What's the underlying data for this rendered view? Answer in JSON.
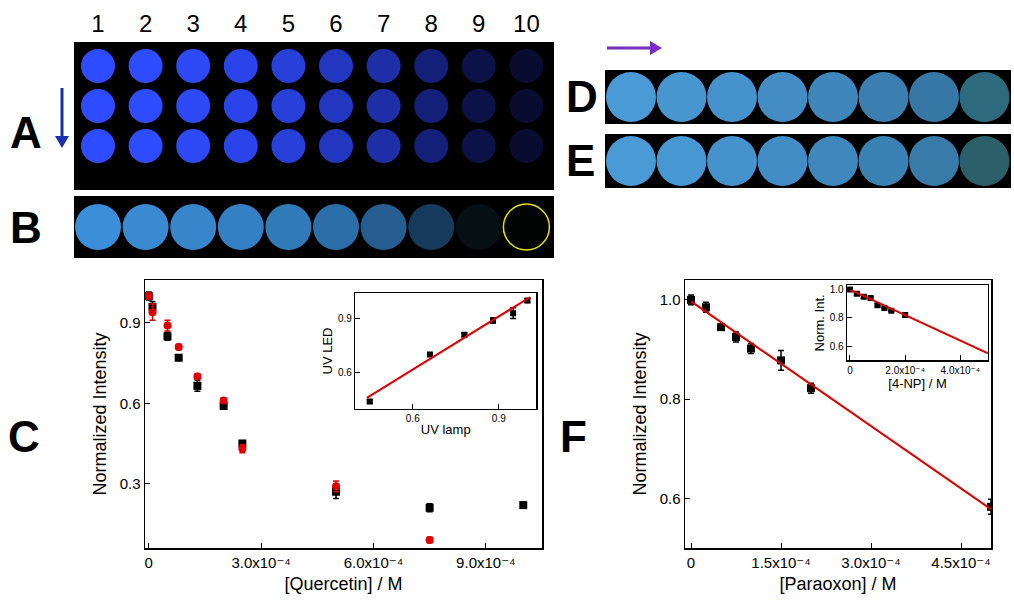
{
  "panels": [
    {
      "letter": "A",
      "columns": [
        "1",
        "2",
        "3",
        "4",
        "5",
        "6",
        "7",
        "8",
        "9",
        "10"
      ],
      "rows": 3,
      "arrow": "down",
      "arrow_color": "#1a2fb0",
      "colors": [
        "#2f4bff",
        "#2f4bff",
        "#2d48f5",
        "#2a44ea",
        "#2740d8",
        "#2336c0",
        "#1e2ea6",
        "#141f78",
        "#0b1248",
        "#080c30"
      ]
    },
    {
      "letter": "B",
      "outlined": 10,
      "outline_color": "#e8e000",
      "colors": [
        "#3b8fd8",
        "#3a8ad2",
        "#3885cc",
        "#3580c4",
        "#317ab8",
        "#2c6ea8",
        "#255d90",
        "#163a5c",
        "#061014",
        "#020404"
      ]
    },
    {
      "letter": "D",
      "arrow": "right",
      "arrow_color": "#7b2fbf",
      "colors": [
        "#4a9ad6",
        "#4896d0",
        "#4692cc",
        "#438cc4",
        "#3f86bb",
        "#3b7eb0",
        "#3777a6",
        "#2e6a7e"
      ]
    },
    {
      "letter": "E",
      "colors": [
        "#4a9ad6",
        "#4797d2",
        "#4592cc",
        "#428dc6",
        "#3f88be",
        "#3b82b4",
        "#387aa8",
        "#2b5f6a"
      ]
    }
  ],
  "chart_data": [
    {
      "label": "C",
      "type": "scatter",
      "xlabel": "[Quercetin] / M",
      "ylabel": "Normalized Intensity",
      "grid": false,
      "xlim": [
        -1e-05,
        0.00105
      ],
      "xticks": [
        0,
        {
          "value": 0.0003,
          "label": "3.0x10⁻⁴"
        },
        {
          "value": 0.0006,
          "label": "6.0x10⁻⁴"
        },
        {
          "value": 0.0009,
          "label": "9.0x10⁻⁴"
        }
      ],
      "ylim": [
        0.06,
        1.06
      ],
      "yticks": [
        0.3,
        0.6,
        0.9
      ],
      "x": [
        0,
        1e-05,
        5e-05,
        8e-05,
        0.00013,
        0.0002,
        0.00025,
        0.0005,
        0.00075,
        0.001
      ],
      "series": [
        {
          "color": "#000000",
          "marker": "square",
          "values": [
            1.0,
            0.96,
            0.85,
            0.77,
            0.665,
            0.59,
            0.45,
            0.27,
            0.21,
            0.22
          ],
          "errors": [
            0.015,
            0.02,
            0.015,
            0.01,
            0.02,
            0.01,
            0.01,
            0.025,
            0.015,
            0.01
          ]
        },
        {
          "color": "#e00000",
          "marker": "circle",
          "values": [
            1.0,
            0.94,
            0.89,
            0.81,
            0.7,
            0.61,
            0.43,
            0.29,
            0.09,
            null
          ],
          "errors": [
            0.01,
            0.03,
            0.02,
            0.01,
            0.01,
            0.01,
            0.015,
            0.02,
            0.01,
            null
          ]
        }
      ],
      "inset": {
        "type": "scatter",
        "xlabel": "UV lamp",
        "ylabel": "UV LED",
        "grid": false,
        "xlim": [
          0.4,
          1.03
        ],
        "xticks": [
          0.6,
          0.9
        ],
        "ylim": [
          0.4,
          1.04
        ],
        "yticks": [
          0.6,
          0.9
        ],
        "x": [
          0.45,
          0.66,
          0.78,
          0.88,
          0.95,
          1.0
        ],
        "series": [
          {
            "color": "#000000",
            "marker": "square",
            "values": [
              0.44,
              0.7,
              0.81,
              0.89,
              0.93,
              1.0
            ],
            "errors": [
              0.01,
              0.005,
              0.01,
              0.015,
              0.03,
              0.01
            ]
          },
          {
            "type": "line",
            "color": "#e00000",
            "x": [
              0.44,
              1.01
            ],
            "values": [
              0.46,
              1.02
            ]
          }
        ]
      }
    },
    {
      "label": "F",
      "type": "scatter",
      "xlabel": "[Paraoxon] / M",
      "ylabel": "Normalized Intensity",
      "grid": false,
      "xlim": [
        -1e-05,
        0.0005
      ],
      "xticks": [
        0,
        {
          "value": 0.00015,
          "label": "1.5x10⁻⁴"
        },
        {
          "value": 0.0003,
          "label": "3.0x10⁻⁴"
        },
        {
          "value": 0.00045,
          "label": "4.5x10⁻⁴"
        }
      ],
      "ylim": [
        0.5,
        1.04
      ],
      "yticks": [
        0.6,
        0.8,
        {
          "value": 1.0,
          "label": "1.0"
        }
      ],
      "x": [
        0,
        2.5e-05,
        5e-05,
        7.5e-05,
        0.0001,
        0.00015,
        0.0002,
        0.0005
      ],
      "series": [
        {
          "color": "#000000",
          "marker": "square",
          "values": [
            1.0,
            0.985,
            0.945,
            0.925,
            0.902,
            0.878,
            0.822,
            0.583
          ],
          "errors": [
            0.01,
            0.01,
            0.005,
            0.01,
            0.01,
            0.02,
            0.01,
            0.015
          ]
        },
        {
          "type": "line",
          "color": "#e00000",
          "x": [
            0,
            0.0005
          ],
          "values": [
            0.997,
            0.578
          ]
        }
      ],
      "inset": {
        "type": "scatter",
        "xlabel": "[4-NP] / M",
        "ylabel": "Norm. Int.",
        "grid": false,
        "xlim": [
          -1e-05,
          0.0005
        ],
        "xticks": [
          0,
          {
            "value": 0.0002,
            "label": "2.0x10⁻⁴"
          },
          {
            "value": 0.0004,
            "label": "4.0x10⁻⁴"
          }
        ],
        "ylim": [
          0.5,
          1.03
        ],
        "yticks": [
          0.6,
          0.8,
          {
            "value": 1.0,
            "label": "1.0"
          }
        ],
        "x": [
          0,
          2.5e-05,
          5e-05,
          7.5e-05,
          0.0001,
          0.000125,
          0.00015,
          0.0002
        ],
        "series": [
          {
            "color": "#000000",
            "marker": "square",
            "values": [
              1.0,
              0.97,
              0.95,
              0.94,
              0.89,
              0.87,
              0.85,
              0.82
            ],
            "errors": [
              0.01,
              0.01,
              0.01,
              0.01,
              0.01,
              0.005,
              0.005,
              0.01
            ]
          },
          {
            "type": "line",
            "color": "#e00000",
            "x": [
              0,
              0.0005
            ],
            "values": [
              1.0,
              0.55
            ]
          }
        ]
      }
    }
  ]
}
